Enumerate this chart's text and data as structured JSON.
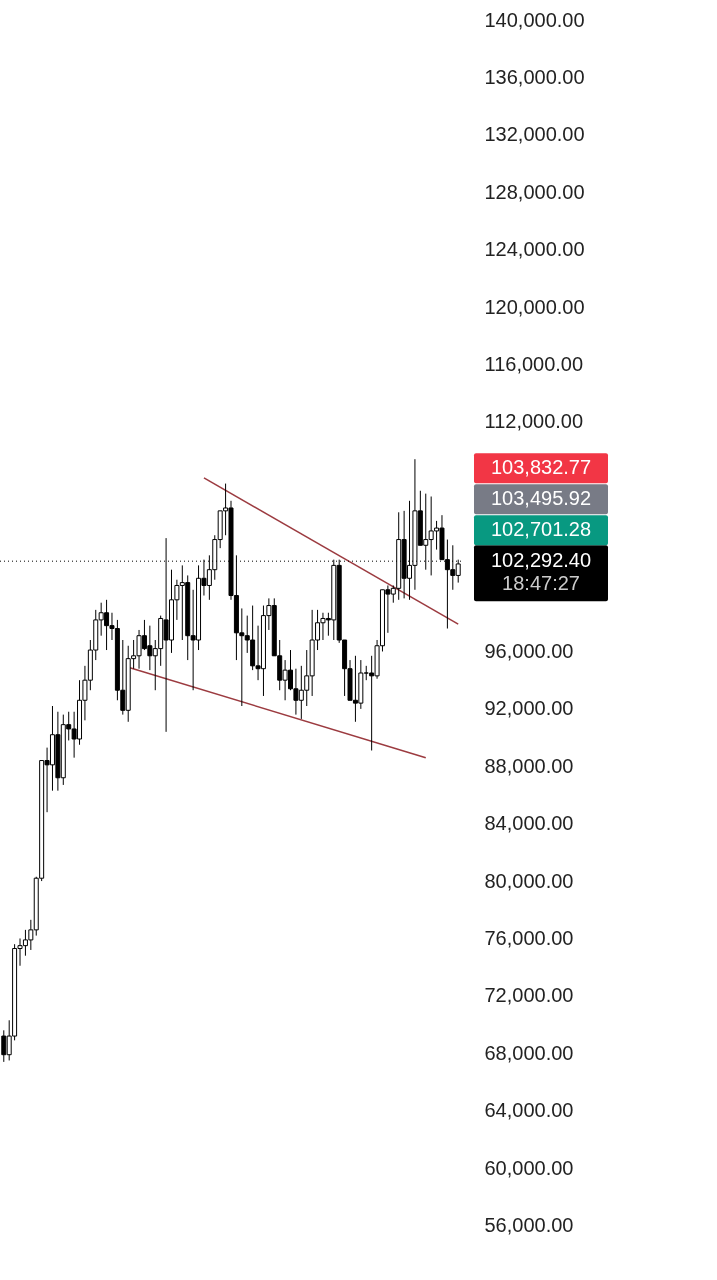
{
  "chart_data": {
    "type": "candlestick",
    "categories": [
      null,
      null,
      null,
      null,
      null,
      null,
      null,
      null,
      null,
      null,
      null,
      null,
      null,
      null,
      null,
      null,
      null,
      null,
      null,
      null,
      null,
      null,
      null,
      null,
      null,
      null,
      null,
      null,
      null,
      null,
      null,
      null,
      null,
      null,
      null,
      null,
      null,
      null,
      null,
      null,
      null,
      null,
      null,
      null,
      null,
      null,
      null,
      null,
      null,
      null,
      null,
      null,
      null,
      null,
      null,
      null,
      null,
      null,
      null,
      null,
      null,
      null,
      null,
      null,
      null,
      null,
      null,
      null,
      null,
      null,
      null,
      null,
      null,
      null,
      null,
      null,
      null,
      null,
      null,
      null,
      null,
      null,
      null,
      null,
      null
    ],
    "ohlc": [
      [
        69200,
        69600,
        67400,
        67900
      ],
      [
        67900,
        70300,
        67500,
        69200
      ],
      [
        69200,
        75600,
        68900,
        75300
      ],
      [
        75300,
        76000,
        74100,
        75500
      ],
      [
        75500,
        76600,
        74800,
        75900
      ],
      [
        75900,
        77300,
        75200,
        76600
      ],
      [
        76600,
        80300,
        76200,
        80200
      ],
      [
        80200,
        88400,
        80000,
        88400
      ],
      [
        88400,
        89300,
        84800,
        88100
      ],
      [
        88100,
        92200,
        86300,
        90200
      ],
      [
        90200,
        91800,
        86300,
        87200
      ],
      [
        87200,
        91600,
        86700,
        90900
      ],
      [
        90900,
        91800,
        89800,
        90600
      ],
      [
        90600,
        91800,
        88600,
        89900
      ],
      [
        89900,
        94000,
        89500,
        92600
      ],
      [
        92600,
        95000,
        91200,
        94000
      ],
      [
        94000,
        96800,
        93300,
        96100
      ],
      [
        96100,
        98900,
        95400,
        98200
      ],
      [
        98200,
        99400,
        97100,
        98700
      ],
      [
        98700,
        99600,
        96100,
        97800
      ],
      [
        97800,
        98700,
        96800,
        97600
      ],
      [
        97600,
        98200,
        92600,
        93300
      ],
      [
        93300,
        96800,
        91600,
        91900
      ],
      [
        91900,
        96400,
        91100,
        95500
      ],
      [
        95500,
        96800,
        94800,
        95700
      ],
      [
        95700,
        97500,
        94800,
        97100
      ],
      [
        97100,
        98200,
        96100,
        96200
      ],
      [
        96400,
        97800,
        94700,
        95700
      ],
      [
        95700,
        96800,
        93300,
        96200
      ],
      [
        96200,
        98500,
        95000,
        98300
      ],
      [
        98200,
        103900,
        90400,
        96800
      ],
      [
        96800,
        101700,
        95900,
        99600
      ],
      [
        99600,
        101000,
        98200,
        100600
      ],
      [
        100600,
        102000,
        96800,
        100800
      ],
      [
        100800,
        101300,
        95400,
        97100
      ],
      [
        97100,
        100300,
        93300,
        96800
      ],
      [
        96800,
        102000,
        96100,
        101100
      ],
      [
        101100,
        102400,
        99900,
        100600
      ],
      [
        100600,
        102700,
        99600,
        101700
      ],
      [
        101700,
        104100,
        101000,
        103800
      ],
      [
        103800,
        105800,
        103200,
        105800
      ],
      [
        105800,
        107700,
        104100,
        106000
      ],
      [
        106000,
        106500,
        99600,
        99900
      ],
      [
        99900,
        102700,
        95400,
        97300
      ],
      [
        97300,
        99000,
        92200,
        97100
      ],
      [
        97100,
        98500,
        95900,
        96800
      ],
      [
        96800,
        99200,
        94700,
        95000
      ],
      [
        95000,
        97800,
        94000,
        94800
      ],
      [
        94800,
        99200,
        92900,
        98500
      ],
      [
        98500,
        99700,
        97500,
        99200
      ],
      [
        99200,
        99700,
        95700,
        95700
      ],
      [
        95700,
        96800,
        93300,
        94000
      ],
      [
        94000,
        95400,
        92600,
        94700
      ],
      [
        94700,
        96100,
        93300,
        93400
      ],
      [
        93400,
        94800,
        91600,
        92600
      ],
      [
        92600,
        95000,
        91300,
        93300
      ],
      [
        93300,
        96100,
        92200,
        94300
      ],
      [
        94300,
        98900,
        92900,
        96800
      ],
      [
        96800,
        98900,
        96100,
        98000
      ],
      [
        98000,
        98700,
        96800,
        98300
      ],
      [
        98300,
        98700,
        97100,
        98200
      ],
      [
        98200,
        102400,
        96800,
        102000
      ],
      [
        102000,
        102400,
        96600,
        96800
      ],
      [
        96800,
        96800,
        92900,
        94800
      ],
      [
        94800,
        95400,
        92600,
        92600
      ],
      [
        92600,
        95700,
        91100,
        92400
      ],
      [
        92400,
        95400,
        92000,
        94500
      ],
      [
        94500,
        95000,
        94000,
        94500
      ],
      [
        94500,
        95700,
        89100,
        94300
      ],
      [
        94300,
        96800,
        94100,
        96400
      ],
      [
        96400,
        100300,
        96000,
        100300
      ],
      [
        100300,
        100600,
        97300,
        100000
      ],
      [
        100000,
        100600,
        99400,
        100400
      ],
      [
        100400,
        105700,
        99600,
        103800
      ],
      [
        103800,
        105800,
        99700,
        101100
      ],
      [
        101100,
        106500,
        99600,
        102000
      ],
      [
        102000,
        109400,
        100300,
        105800
      ],
      [
        105800,
        107200,
        103400,
        103400
      ],
      [
        103400,
        107000,
        101700,
        103800
      ],
      [
        103800,
        106800,
        101300,
        104400
      ],
      [
        104400,
        105100,
        103100,
        104600
      ],
      [
        104600,
        105500,
        102400,
        102400
      ],
      [
        102400,
        103800,
        97600,
        101700
      ],
      [
        101700,
        103400,
        100300,
        101300
      ],
      [
        101300,
        102400,
        100800,
        102100
      ]
    ],
    "series": [
      {
        "type": "line",
        "color": "#9c3b40",
        "values": [
          null,
          null,
          null,
          null,
          null,
          null,
          null,
          null,
          null,
          null,
          null,
          null,
          null,
          null,
          null,
          null,
          null,
          null,
          null,
          null,
          null,
          null,
          null,
          null,
          null,
          null,
          null,
          null,
          null,
          null,
          null,
          null,
          null,
          null,
          null,
          null,
          null,
          108100,
          null,
          null,
          null,
          null,
          null,
          null,
          null,
          null,
          null,
          null,
          null,
          null,
          null,
          null,
          null,
          null,
          null,
          null,
          null,
          null,
          null,
          null,
          null,
          null,
          null,
          null,
          null,
          null,
          null,
          null,
          null,
          null,
          null,
          null,
          null,
          null,
          null,
          null,
          null,
          null,
          null,
          null,
          null,
          null,
          null,
          null,
          97900
        ]
      },
      {
        "type": "line",
        "color": "#9c3b40",
        "values": [
          null,
          null,
          null,
          null,
          null,
          null,
          null,
          null,
          null,
          null,
          null,
          null,
          null,
          null,
          null,
          null,
          null,
          null,
          null,
          null,
          null,
          null,
          null,
          94900,
          null,
          null,
          null,
          null,
          null,
          null,
          null,
          null,
          null,
          null,
          null,
          null,
          null,
          null,
          null,
          null,
          null,
          null,
          null,
          null,
          null,
          null,
          null,
          null,
          null,
          null,
          null,
          null,
          null,
          null,
          null,
          null,
          null,
          null,
          null,
          null,
          null,
          null,
          null,
          null,
          null,
          null,
          null,
          null,
          null,
          null,
          null,
          null,
          null,
          null,
          null,
          null,
          null,
          null,
          88600,
          null,
          null,
          null,
          null,
          null,
          null
        ]
      }
    ],
    "ylim": [
      52200,
      141400
    ],
    "yticks": [
      {
        "value": 56000,
        "label": "56,000.00"
      },
      {
        "value": 60000,
        "label": "60,000.00"
      },
      {
        "value": 64000,
        "label": "64,000.00"
      },
      {
        "value": 68000,
        "label": "68,000.00"
      },
      {
        "value": 72000,
        "label": "72,000.00"
      },
      {
        "value": 76000,
        "label": "76,000.00"
      },
      {
        "value": 80000,
        "label": "80,000.00"
      },
      {
        "value": 84000,
        "label": "84,000.00"
      },
      {
        "value": 88000,
        "label": "88,000.00"
      },
      {
        "value": 92000,
        "label": "92,000.00"
      },
      {
        "value": 96000,
        "label": "96,000.00"
      },
      {
        "value": 112000,
        "label": "112,000.00"
      },
      {
        "value": 116000,
        "label": "116,000.00"
      },
      {
        "value": 120000,
        "label": "120,000.00"
      },
      {
        "value": 124000,
        "label": "124,000.00"
      },
      {
        "value": 128000,
        "label": "128,000.00"
      },
      {
        "value": 132000,
        "label": "132,000.00"
      },
      {
        "value": 136000,
        "label": "136,000.00"
      },
      {
        "value": 140000,
        "label": "140,000.00"
      }
    ],
    "ref_lines": [
      {
        "axis": "y",
        "value": 102292.4,
        "label": "102,292.40",
        "color": "#000000",
        "line_style": "dotted"
      }
    ],
    "annotations": [
      "103,832.77",
      "103,495.92",
      "102,701.28",
      "18:47:27"
    ],
    "tick_labels": "y",
    "grid": false
  }
}
